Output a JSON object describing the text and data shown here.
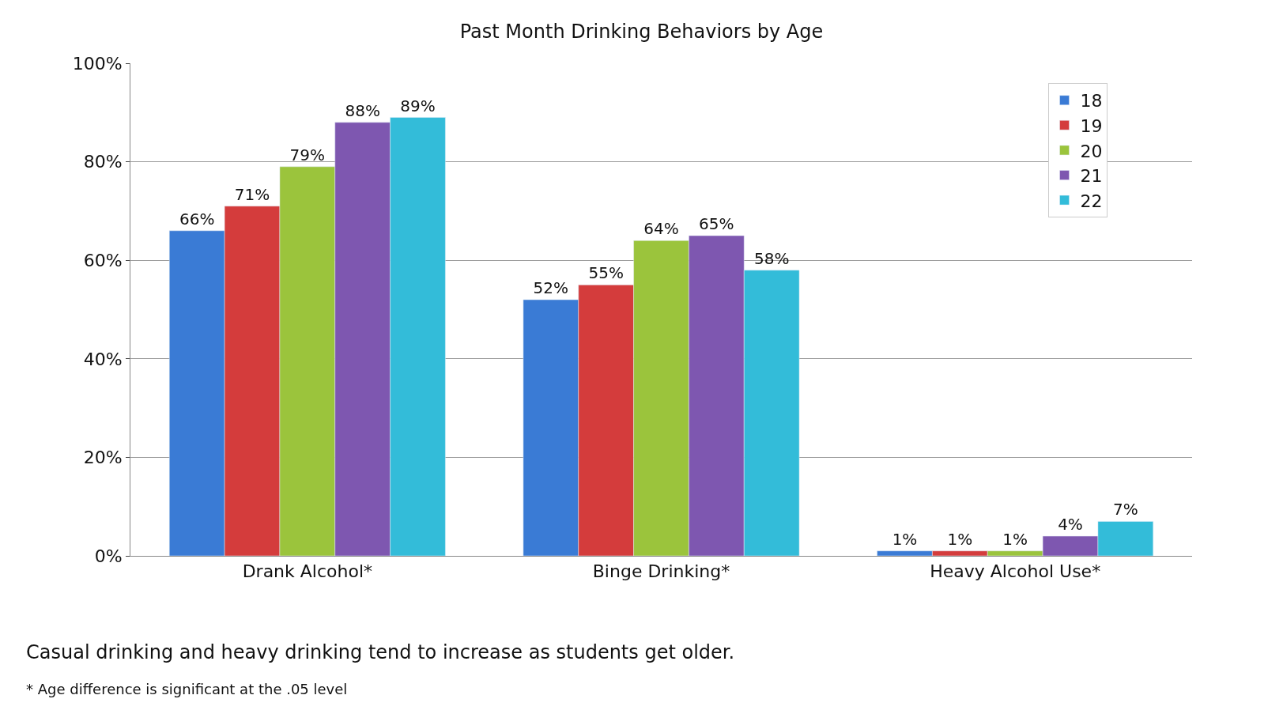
{
  "chart_data": {
    "type": "bar",
    "title": "Past Month Drinking Behaviors by Age",
    "categories": [
      "Drank Alcohol*",
      "Binge Drinking*",
      "Heavy Alcohol Use*"
    ],
    "series": [
      {
        "name": "18",
        "color": "#3a7bd5",
        "values": [
          66,
          52,
          1
        ],
        "value_labels": [
          "66%",
          "52%",
          "1%"
        ]
      },
      {
        "name": "19",
        "color": "#d43c3c",
        "values": [
          71,
          55,
          1
        ],
        "value_labels": [
          "71%",
          "55%",
          "1%"
        ]
      },
      {
        "name": "20",
        "color": "#9bc43c",
        "values": [
          79,
          64,
          1
        ],
        "value_labels": [
          "79%",
          "64%",
          "1%"
        ]
      },
      {
        "name": "21",
        "color": "#7e57b0",
        "values": [
          88,
          65,
          4
        ],
        "value_labels": [
          "88%",
          "65%",
          "4%"
        ]
      },
      {
        "name": "22",
        "color": "#33bcd9",
        "values": [
          89,
          58,
          7
        ],
        "value_labels": [
          "89%",
          "58%",
          "7%"
        ]
      }
    ],
    "ylim": [
      0,
      100
    ],
    "yticks": [
      {
        "value": 0,
        "label": "0%"
      },
      {
        "value": 20,
        "label": "20%"
      },
      {
        "value": 40,
        "label": "40%"
      },
      {
        "value": 60,
        "label": "60%"
      },
      {
        "value": 80,
        "label": "80%"
      },
      {
        "value": 100,
        "label": "100%"
      }
    ],
    "grid": "y",
    "legend": "top right",
    "annotations": [
      "Casual drinking and heavy drinking tend to increase as students get older.",
      "* Age difference is significant at the .05 level"
    ]
  }
}
